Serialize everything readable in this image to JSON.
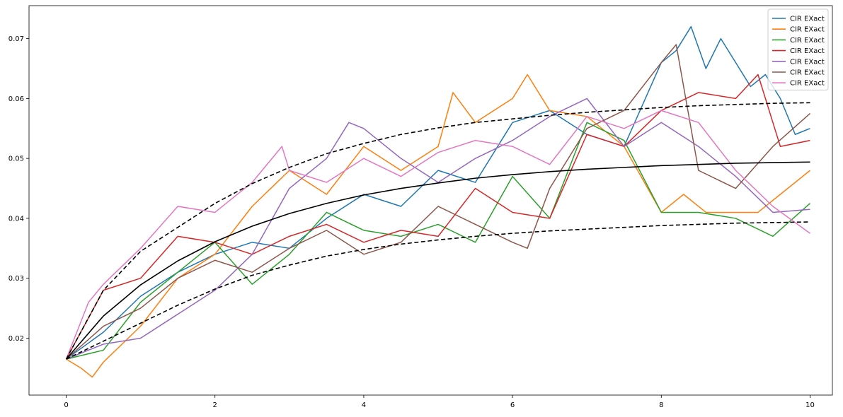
{
  "chart_data": {
    "type": "line",
    "title": "",
    "xlabel": "",
    "ylabel": "",
    "xlim": [
      -0.5,
      10.3
    ],
    "ylim": [
      0.0105,
      0.0755
    ],
    "xticks": [
      0,
      2,
      4,
      6,
      8,
      10
    ],
    "xtick_labels": [
      "0",
      "2",
      "4",
      "6",
      "8",
      "10"
    ],
    "yticks": [
      0.02,
      0.03,
      0.04,
      0.05,
      0.06,
      0.07
    ],
    "ytick_labels": [
      "0.02",
      "0.03",
      "0.04",
      "0.05",
      "0.06",
      "0.07"
    ],
    "grid": false,
    "legend_position": "top-right",
    "series": [
      {
        "name": "CIR EXact",
        "color": "#1f77b4",
        "x": [
          0,
          0.5,
          1,
          1.5,
          2,
          2.5,
          3,
          3.5,
          4,
          4.5,
          5,
          5.5,
          6,
          6.5,
          7,
          7.5,
          8,
          8.2,
          8.4,
          8.6,
          8.8,
          9,
          9.2,
          9.4,
          9.6,
          9.8,
          10
        ],
        "y": [
          0.0165,
          0.021,
          0.027,
          0.031,
          0.034,
          0.036,
          0.035,
          0.04,
          0.044,
          0.042,
          0.048,
          0.046,
          0.056,
          0.058,
          0.054,
          0.052,
          0.066,
          0.068,
          0.072,
          0.065,
          0.07,
          0.066,
          0.062,
          0.064,
          0.06,
          0.054,
          0.055
        ]
      },
      {
        "name": "CIR EXact",
        "color": "#ff7f0e",
        "x": [
          0,
          0.2,
          0.35,
          0.5,
          1,
          1.5,
          2,
          2.5,
          3,
          3.5,
          4,
          4.5,
          5,
          5.2,
          5.5,
          6,
          6.2,
          6.5,
          7,
          7.5,
          8,
          8.3,
          8.6,
          9,
          9.3,
          9.6,
          10
        ],
        "y": [
          0.0165,
          0.015,
          0.0135,
          0.016,
          0.022,
          0.03,
          0.034,
          0.042,
          0.048,
          0.044,
          0.052,
          0.048,
          0.052,
          0.061,
          0.056,
          0.06,
          0.064,
          0.058,
          0.057,
          0.052,
          0.041,
          0.044,
          0.041,
          0.041,
          0.041,
          0.044,
          0.048
        ]
      },
      {
        "name": "CIR EXact",
        "color": "#2ca02c",
        "x": [
          0,
          0.5,
          1,
          1.5,
          2,
          2.5,
          3,
          3.5,
          4,
          4.5,
          5,
          5.5,
          6,
          6.5,
          7,
          7.5,
          8,
          8.5,
          9,
          9.5,
          10
        ],
        "y": [
          0.0165,
          0.018,
          0.026,
          0.031,
          0.036,
          0.029,
          0.034,
          0.041,
          0.038,
          0.037,
          0.039,
          0.036,
          0.047,
          0.04,
          0.056,
          0.053,
          0.041,
          0.041,
          0.04,
          0.037,
          0.0425
        ]
      },
      {
        "name": "CIR EXact",
        "color": "#d62728",
        "x": [
          0,
          0.5,
          1,
          1.5,
          2,
          2.5,
          3,
          3.5,
          4,
          4.5,
          5,
          5.5,
          6,
          6.5,
          7,
          7.5,
          8,
          8.5,
          9,
          9.3,
          9.6,
          10
        ],
        "y": [
          0.0165,
          0.028,
          0.03,
          0.037,
          0.036,
          0.034,
          0.037,
          0.039,
          0.036,
          0.038,
          0.037,
          0.045,
          0.041,
          0.04,
          0.054,
          0.052,
          0.058,
          0.061,
          0.06,
          0.064,
          0.052,
          0.053
        ]
      },
      {
        "name": "CIR EXact",
        "color": "#9467bd",
        "x": [
          0,
          0.5,
          1,
          1.5,
          2,
          2.5,
          3,
          3.5,
          3.8,
          4,
          4.5,
          5,
          5.5,
          6,
          6.5,
          7,
          7.5,
          8,
          8.5,
          9,
          9.5,
          10
        ],
        "y": [
          0.0165,
          0.019,
          0.02,
          0.024,
          0.028,
          0.034,
          0.045,
          0.05,
          0.056,
          0.055,
          0.05,
          0.046,
          0.05,
          0.053,
          0.057,
          0.06,
          0.052,
          0.056,
          0.052,
          0.047,
          0.041,
          0.0415
        ]
      },
      {
        "name": "CIR EXact",
        "color": "#8c564b",
        "x": [
          0,
          0.5,
          1,
          1.5,
          2,
          2.5,
          3,
          3.5,
          4,
          4.5,
          5,
          5.5,
          6,
          6.2,
          6.5,
          7,
          7.5,
          8,
          8.2,
          8.5,
          9,
          9.5,
          10
        ],
        "y": [
          0.0165,
          0.022,
          0.025,
          0.03,
          0.033,
          0.031,
          0.035,
          0.038,
          0.034,
          0.036,
          0.042,
          0.039,
          0.036,
          0.035,
          0.045,
          0.055,
          0.058,
          0.066,
          0.069,
          0.048,
          0.045,
          0.052,
          0.0575
        ]
      },
      {
        "name": "CIR EXact",
        "color": "#e377c2",
        "x": [
          0,
          0.3,
          0.5,
          1,
          1.5,
          2,
          2.5,
          2.9,
          3,
          3.5,
          4,
          4.5,
          5,
          5.5,
          6,
          6.5,
          7,
          7.5,
          8,
          8.5,
          9,
          9.5,
          10
        ],
        "y": [
          0.0165,
          0.026,
          0.029,
          0.035,
          0.042,
          0.041,
          0.046,
          0.052,
          0.048,
          0.046,
          0.05,
          0.047,
          0.051,
          0.053,
          0.052,
          0.049,
          0.057,
          0.055,
          0.058,
          0.056,
          0.048,
          0.042,
          0.0375
        ]
      },
      {
        "name": "",
        "color": "#000000",
        "style": "solid",
        "x": [
          0,
          0.5,
          1,
          1.5,
          2,
          2.5,
          3,
          3.5,
          4,
          4.5,
          5,
          5.5,
          6,
          6.5,
          7,
          7.5,
          8,
          8.5,
          9,
          9.5,
          10
        ],
        "y": [
          0.0165,
          0.0237,
          0.0289,
          0.0329,
          0.0361,
          0.0387,
          0.0408,
          0.0425,
          0.0439,
          0.045,
          0.0459,
          0.0467,
          0.0473,
          0.0478,
          0.0482,
          0.0485,
          0.0488,
          0.049,
          0.0492,
          0.0493,
          0.0494
        ]
      },
      {
        "name": "",
        "color": "#000000",
        "style": "dashed",
        "x": [
          0,
          0.5,
          1,
          1.5,
          2,
          2.5,
          3,
          3.5,
          4,
          4.5,
          5,
          5.5,
          6,
          6.5,
          7,
          7.5,
          8,
          8.5,
          9,
          9.5,
          10
        ],
        "y": [
          0.0165,
          0.028,
          0.0345,
          0.0385,
          0.0425,
          0.0458,
          0.0485,
          0.0508,
          0.0525,
          0.054,
          0.0551,
          0.056,
          0.0566,
          0.0572,
          0.0577,
          0.0581,
          0.0585,
          0.0588,
          0.059,
          0.0592,
          0.0593
        ]
      },
      {
        "name": "",
        "color": "#000000",
        "style": "dashed",
        "x": [
          0,
          0.5,
          1,
          1.5,
          2,
          2.5,
          3,
          3.5,
          4,
          4.5,
          5,
          5.5,
          6,
          6.5,
          7,
          7.5,
          8,
          8.5,
          9,
          9.5,
          10
        ],
        "y": [
          0.0165,
          0.0195,
          0.0225,
          0.0255,
          0.0282,
          0.0305,
          0.0322,
          0.0337,
          0.0348,
          0.0357,
          0.0364,
          0.037,
          0.0375,
          0.0379,
          0.0382,
          0.0385,
          0.0388,
          0.039,
          0.0392,
          0.0393,
          0.0394
        ]
      }
    ]
  }
}
